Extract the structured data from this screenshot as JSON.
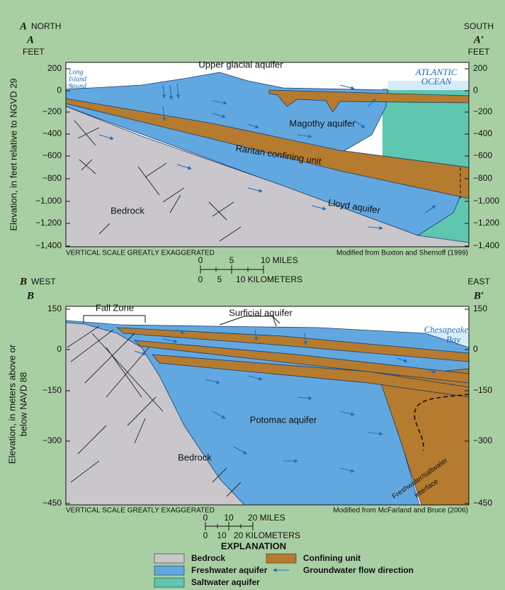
{
  "panel_a": {
    "letter": "A",
    "left_direction": "NORTH",
    "left_section": "A",
    "left_unit": "FEET",
    "right_direction": "SOUTH",
    "right_section": "A′",
    "right_unit": "FEET",
    "y_axis_title": "Elevation, in feet relative to NGVD 29",
    "left_ticks": [
      "200",
      "0",
      "−200",
      "−400",
      "−600",
      "−800",
      "−1,000",
      "−1,200",
      "−1,400"
    ],
    "right_ticks": [
      "200",
      "0",
      "−200",
      "−400",
      "−600",
      "−800",
      "−1,000",
      "−1,200",
      "−1,400"
    ],
    "labels": {
      "long_island_sound": [
        "Long",
        "Island",
        "Sound"
      ],
      "upper_glacial": "Upper glacial aquifer",
      "atlantic_ocean": [
        "ATLANTIC",
        "OCEAN"
      ],
      "magothy": "Magothy aquifer",
      "raritan": "Raritan confining unit",
      "bedrock": "Bedrock",
      "lloyd": "Lloyd aquifer"
    },
    "note": "VERTICAL SCALE GREATLY EXAGGERATED",
    "source": "Modified from Buxton and Shernoff (1999)",
    "scale_bar": {
      "miles": [
        "0",
        "5",
        "10 MILES"
      ],
      "kilometers": [
        "0",
        "5",
        "10 KILOMETERS"
      ]
    }
  },
  "panel_b": {
    "letter": "B",
    "left_direction": "WEST",
    "left_section": "B",
    "right_direction": "EAST",
    "right_section": "B′",
    "y_axis_title": [
      "Elevation, in meters above or",
      "below NAVD 88"
    ],
    "left_ticks": [
      "150",
      "0",
      "−150",
      "−300",
      "−450"
    ],
    "right_ticks": [
      "150",
      "0",
      "−150",
      "−300",
      "−450"
    ],
    "labels": {
      "fall_zone": "Fall Zone",
      "surficial": "Surficial aquifer",
      "chesapeake_bay": [
        "Chesapeake",
        "Bay"
      ],
      "potomac": "Potomac aquifer",
      "bedrock": "Bedrock",
      "interface": [
        "Freshwater/saltwater",
        "interface"
      ]
    },
    "note": "VERTICAL SCALE GREATLY EXAGGERATED",
    "source": "Modified from McFarland and Bruce (2006)",
    "scale_bar": {
      "miles": [
        "0",
        "10",
        "20 MILES"
      ],
      "kilometers": [
        "0",
        "10",
        "20 KILOMETERS"
      ]
    }
  },
  "explanation": {
    "title": "EXPLANATION",
    "items": [
      "Bedrock",
      "Freshwater aquifer",
      "Saltwater aquifer",
      "Confining unit",
      "Groundwater flow direction"
    ]
  }
}
